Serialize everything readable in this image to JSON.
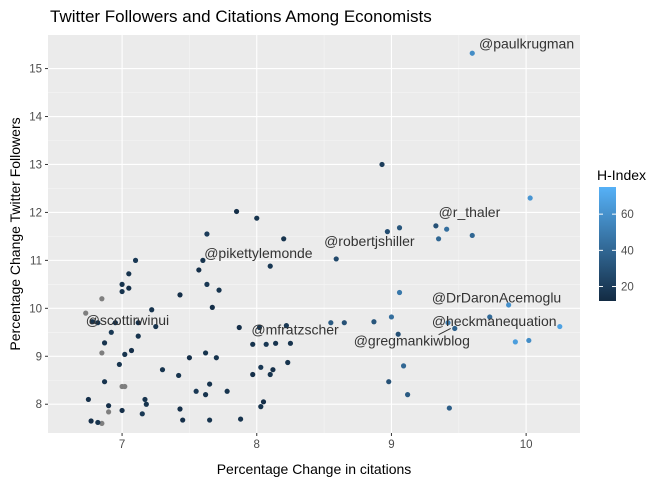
{
  "chart_data": {
    "type": "scatter",
    "title": "Twitter Followers and Citations Among Economists",
    "xlabel": "Percentage Change in citations",
    "ylabel": "Percentage Change Twitter Followers",
    "xlim": [
      6.45,
      10.4
    ],
    "ylim": [
      7.4,
      15.7
    ],
    "x_ticks": [
      7,
      8,
      9,
      10
    ],
    "y_ticks": [
      8,
      9,
      10,
      11,
      12,
      13,
      14,
      15
    ],
    "grid": true,
    "legend": {
      "title": "H-Index",
      "position": "right",
      "ticks": [
        20,
        40,
        60
      ],
      "range": [
        12,
        75
      ],
      "low_color": "#132B43",
      "high_color": "#56B1F7",
      "na_color": "#7f7f7f"
    },
    "points": [
      {
        "x": 9.6,
        "y": 15.32,
        "h": 58
      },
      {
        "x": 8.93,
        "y": 13.0,
        "h": 20
      },
      {
        "x": 10.03,
        "y": 12.3,
        "h": 62
      },
      {
        "x": 7.85,
        "y": 12.02,
        "h": 14
      },
      {
        "x": 8.0,
        "y": 11.88,
        "h": 16
      },
      {
        "x": 9.33,
        "y": 11.72,
        "h": 30
      },
      {
        "x": 9.41,
        "y": 11.65,
        "h": 44
      },
      {
        "x": 9.06,
        "y": 11.68,
        "h": 32
      },
      {
        "x": 8.97,
        "y": 11.6,
        "h": 28
      },
      {
        "x": 7.63,
        "y": 11.55,
        "h": 20
      },
      {
        "x": 9.6,
        "y": 11.52,
        "h": 40
      },
      {
        "x": 8.2,
        "y": 11.45,
        "h": 16
      },
      {
        "x": 9.35,
        "y": 11.45,
        "h": 40
      },
      {
        "x": 8.59,
        "y": 11.03,
        "h": 26
      },
      {
        "x": 7.1,
        "y": 11.0,
        "h": 18
      },
      {
        "x": 7.6,
        "y": 11.0,
        "h": 16
      },
      {
        "x": 8.1,
        "y": 10.88,
        "h": 18
      },
      {
        "x": 7.57,
        "y": 10.8,
        "h": 14
      },
      {
        "x": 7.05,
        "y": 10.72,
        "h": 16
      },
      {
        "x": 7.0,
        "y": 10.5,
        "h": 16
      },
      {
        "x": 7.05,
        "y": 10.42,
        "h": 14
      },
      {
        "x": 7.63,
        "y": 10.5,
        "h": 18
      },
      {
        "x": 7.72,
        "y": 10.38,
        "h": 16
      },
      {
        "x": 7.0,
        "y": 10.35,
        "h": 16
      },
      {
        "x": 7.43,
        "y": 10.28,
        "h": 14
      },
      {
        "x": 6.85,
        "y": 10.2,
        "h": null
      },
      {
        "x": 9.06,
        "y": 10.33,
        "h": 48
      },
      {
        "x": 9.87,
        "y": 10.07,
        "h": 60
      },
      {
        "x": 7.22,
        "y": 9.97,
        "h": 16
      },
      {
        "x": 7.67,
        "y": 10.02,
        "h": 14
      },
      {
        "x": 6.73,
        "y": 9.9,
        "h": null
      },
      {
        "x": 6.82,
        "y": 9.7,
        "h": 16
      },
      {
        "x": 6.95,
        "y": 9.7,
        "h": 14
      },
      {
        "x": 6.78,
        "y": 9.72,
        "h": 16
      },
      {
        "x": 6.92,
        "y": 9.5,
        "h": 18
      },
      {
        "x": 7.12,
        "y": 9.7,
        "h": 14
      },
      {
        "x": 7.25,
        "y": 9.62,
        "h": 16
      },
      {
        "x": 8.55,
        "y": 9.7,
        "h": 34
      },
      {
        "x": 8.65,
        "y": 9.7,
        "h": 30
      },
      {
        "x": 8.87,
        "y": 9.72,
        "h": 32
      },
      {
        "x": 9.0,
        "y": 9.82,
        "h": 44
      },
      {
        "x": 8.02,
        "y": 9.6,
        "h": 18
      },
      {
        "x": 8.22,
        "y": 9.64,
        "h": 18
      },
      {
        "x": 7.87,
        "y": 9.6,
        "h": 14
      },
      {
        "x": 9.73,
        "y": 9.82,
        "h": 42
      },
      {
        "x": 9.42,
        "y": 9.7,
        "h": 50
      },
      {
        "x": 9.47,
        "y": 9.58,
        "h": 38
      },
      {
        "x": 7.12,
        "y": 9.42,
        "h": 16
      },
      {
        "x": 9.05,
        "y": 9.46,
        "h": 30
      },
      {
        "x": 10.25,
        "y": 9.62,
        "h": 68
      },
      {
        "x": 10.02,
        "y": 9.33,
        "h": 58
      },
      {
        "x": 9.92,
        "y": 9.3,
        "h": 66
      },
      {
        "x": 6.87,
        "y": 9.28,
        "h": 16
      },
      {
        "x": 6.85,
        "y": 9.07,
        "h": null
      },
      {
        "x": 7.02,
        "y": 9.04,
        "h": 16
      },
      {
        "x": 7.07,
        "y": 9.12,
        "h": 14
      },
      {
        "x": 7.62,
        "y": 9.07,
        "h": 16
      },
      {
        "x": 7.97,
        "y": 9.25,
        "h": 16
      },
      {
        "x": 8.07,
        "y": 9.25,
        "h": 18
      },
      {
        "x": 8.14,
        "y": 9.27,
        "h": 16
      },
      {
        "x": 8.25,
        "y": 9.27,
        "h": 16
      },
      {
        "x": 7.5,
        "y": 8.97,
        "h": 14
      },
      {
        "x": 7.7,
        "y": 8.97,
        "h": 16
      },
      {
        "x": 6.98,
        "y": 8.83,
        "h": 16
      },
      {
        "x": 8.23,
        "y": 8.87,
        "h": 16
      },
      {
        "x": 9.09,
        "y": 8.8,
        "h": 40
      },
      {
        "x": 7.3,
        "y": 8.72,
        "h": 16
      },
      {
        "x": 8.03,
        "y": 8.77,
        "h": 18
      },
      {
        "x": 8.12,
        "y": 8.72,
        "h": 14
      },
      {
        "x": 8.1,
        "y": 8.62,
        "h": 16
      },
      {
        "x": 7.97,
        "y": 8.62,
        "h": 14
      },
      {
        "x": 7.42,
        "y": 8.6,
        "h": 16
      },
      {
        "x": 6.87,
        "y": 8.47,
        "h": 16
      },
      {
        "x": 7.65,
        "y": 8.42,
        "h": 16
      },
      {
        "x": 7.0,
        "y": 8.37,
        "h": null
      },
      {
        "x": 7.02,
        "y": 8.37,
        "h": null
      },
      {
        "x": 8.98,
        "y": 8.47,
        "h": 30
      },
      {
        "x": 7.55,
        "y": 8.27,
        "h": 18
      },
      {
        "x": 7.78,
        "y": 8.27,
        "h": 16
      },
      {
        "x": 9.12,
        "y": 8.2,
        "h": 34
      },
      {
        "x": 7.62,
        "y": 8.2,
        "h": 16
      },
      {
        "x": 6.75,
        "y": 8.1,
        "h": 14
      },
      {
        "x": 7.17,
        "y": 8.1,
        "h": 16
      },
      {
        "x": 8.05,
        "y": 8.05,
        "h": 14
      },
      {
        "x": 7.18,
        "y": 8.0,
        "h": 16
      },
      {
        "x": 6.9,
        "y": 7.97,
        "h": 14
      },
      {
        "x": 8.03,
        "y": 7.95,
        "h": 16
      },
      {
        "x": 7.43,
        "y": 7.9,
        "h": 14
      },
      {
        "x": 9.43,
        "y": 7.92,
        "h": 36
      },
      {
        "x": 7.0,
        "y": 7.87,
        "h": 14
      },
      {
        "x": 6.9,
        "y": 7.84,
        "h": null
      },
      {
        "x": 7.15,
        "y": 7.8,
        "h": 18
      },
      {
        "x": 6.77,
        "y": 7.65,
        "h": 14
      },
      {
        "x": 6.85,
        "y": 7.6,
        "h": null
      },
      {
        "x": 7.45,
        "y": 7.67,
        "h": 14
      },
      {
        "x": 7.65,
        "y": 7.67,
        "h": 16
      },
      {
        "x": 7.88,
        "y": 7.69,
        "h": 16
      },
      {
        "x": 6.82,
        "y": 7.62,
        "h": 16
      }
    ],
    "annotations": [
      {
        "text": "@paulkrugman",
        "x": 9.65,
        "y": 15.42,
        "anchor": "start"
      },
      {
        "text": "@r_thaler",
        "x": 9.35,
        "y": 11.9,
        "anchor": "start"
      },
      {
        "text": "@robertjshiller",
        "x": 8.5,
        "y": 11.3,
        "anchor": "start"
      },
      {
        "text": "@pikettylemonde",
        "x": 7.61,
        "y": 11.05,
        "anchor": "start"
      },
      {
        "text": "@DrDaronAcemoglu",
        "x": 9.3,
        "y": 10.12,
        "anchor": "start"
      },
      {
        "text": "@scottirwinui",
        "x": 6.73,
        "y": 9.65,
        "anchor": "start"
      },
      {
        "text": "@heckmanequation",
        "x": 9.3,
        "y": 9.63,
        "anchor": "start"
      },
      {
        "text": "@mfratzscher",
        "x": 7.96,
        "y": 9.45,
        "anchor": "start"
      },
      {
        "text": "@gregmankiwblog",
        "x": 8.72,
        "y": 9.22,
        "anchor": "start"
      }
    ]
  }
}
